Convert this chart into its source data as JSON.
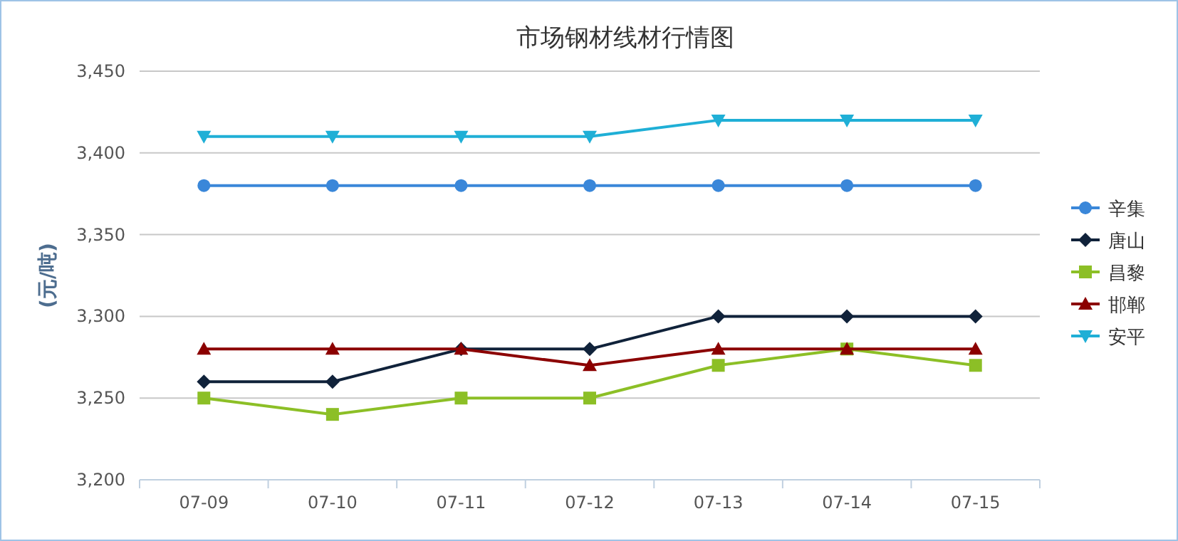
{
  "chart_data": {
    "type": "line",
    "title": "市场钢材线材行情图",
    "ylabel": "(元/吨)",
    "categories": [
      "07-09",
      "07-10",
      "07-11",
      "07-12",
      "07-13",
      "07-14",
      "07-15"
    ],
    "series": [
      {
        "name": "辛集",
        "color": "#3a87d9",
        "marker": "circle",
        "values": [
          3380,
          3380,
          3380,
          3380,
          3380,
          3380,
          3380
        ]
      },
      {
        "name": "唐山",
        "color": "#10223a",
        "marker": "diamond",
        "values": [
          3260,
          3260,
          3280,
          3280,
          3300,
          3300,
          3300
        ]
      },
      {
        "name": "昌黎",
        "color": "#8cbf26",
        "marker": "square",
        "values": [
          3250,
          3240,
          3250,
          3250,
          3270,
          3280,
          3270
        ]
      },
      {
        "name": "邯郸",
        "color": "#8b0000",
        "marker": "triangle",
        "values": [
          3280,
          3280,
          3280,
          3270,
          3280,
          3280,
          3280
        ]
      },
      {
        "name": "安平",
        "color": "#1fafd6",
        "marker": "triangle-down",
        "values": [
          3410,
          3410,
          3410,
          3410,
          3420,
          3420,
          3420
        ]
      }
    ],
    "ylim": [
      3200,
      3450
    ],
    "yticks": [
      {
        "value": 3200,
        "label": "3,200"
      },
      {
        "value": 3250,
        "label": "3,250"
      },
      {
        "value": 3300,
        "label": "3,300"
      },
      {
        "value": 3350,
        "label": "3,350"
      },
      {
        "value": 3400,
        "label": "3,400"
      },
      {
        "value": 3450,
        "label": "3,450"
      }
    ],
    "grid": "y",
    "legend": "right",
    "line_style": "solid"
  }
}
